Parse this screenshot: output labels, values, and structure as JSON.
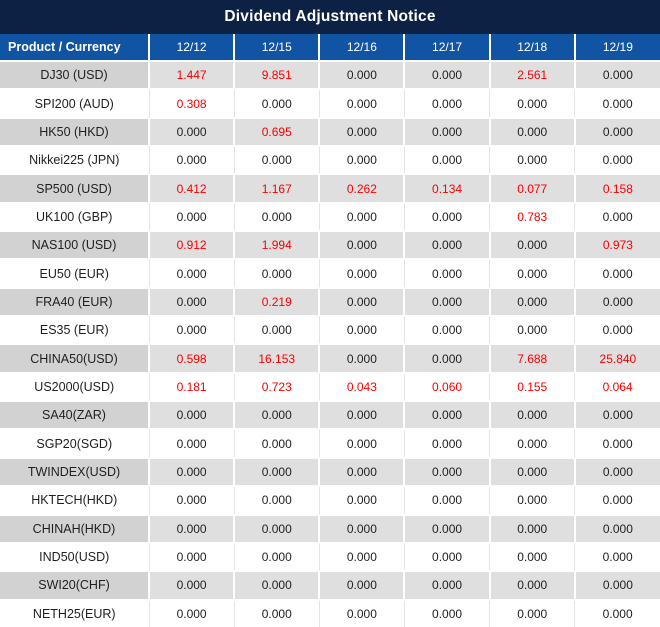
{
  "title": "Dividend Adjustment Notice",
  "table": {
    "first_column_header": "Product / Currency",
    "date_headers": [
      "12/12",
      "12/15",
      "12/16",
      "12/17",
      "12/18",
      "12/19"
    ],
    "rows": [
      {
        "product": "DJ30 (USD)",
        "values": [
          "1.447",
          "9.851",
          "0.000",
          "0.000",
          "2.561",
          "0.000"
        ]
      },
      {
        "product": "SPI200 (AUD)",
        "values": [
          "0.308",
          "0.000",
          "0.000",
          "0.000",
          "0.000",
          "0.000"
        ]
      },
      {
        "product": "HK50 (HKD)",
        "values": [
          "0.000",
          "0.695",
          "0.000",
          "0.000",
          "0.000",
          "0.000"
        ]
      },
      {
        "product": "Nikkei225 (JPN)",
        "values": [
          "0.000",
          "0.000",
          "0.000",
          "0.000",
          "0.000",
          "0.000"
        ]
      },
      {
        "product": "SP500 (USD)",
        "values": [
          "0.412",
          "1.167",
          "0.262",
          "0.134",
          "0.077",
          "0.158"
        ]
      },
      {
        "product": "UK100 (GBP)",
        "values": [
          "0.000",
          "0.000",
          "0.000",
          "0.000",
          "0.783",
          "0.000"
        ]
      },
      {
        "product": "NAS100 (USD)",
        "values": [
          "0.912",
          "1.994",
          "0.000",
          "0.000",
          "0.000",
          "0.973"
        ]
      },
      {
        "product": "EU50 (EUR)",
        "values": [
          "0.000",
          "0.000",
          "0.000",
          "0.000",
          "0.000",
          "0.000"
        ]
      },
      {
        "product": "FRA40 (EUR)",
        "values": [
          "0.000",
          "0.219",
          "0.000",
          "0.000",
          "0.000",
          "0.000"
        ]
      },
      {
        "product": "ES35 (EUR)",
        "values": [
          "0.000",
          "0.000",
          "0.000",
          "0.000",
          "0.000",
          "0.000"
        ]
      },
      {
        "product": "CHINA50(USD)",
        "values": [
          "0.598",
          "16.153",
          "0.000",
          "0.000",
          "7.688",
          "25.840"
        ]
      },
      {
        "product": "US2000(USD)",
        "values": [
          "0.181",
          "0.723",
          "0.043",
          "0.060",
          "0.155",
          "0.064"
        ]
      },
      {
        "product": "SA40(ZAR)",
        "values": [
          "0.000",
          "0.000",
          "0.000",
          "0.000",
          "0.000",
          "0.000"
        ]
      },
      {
        "product": "SGP20(SGD)",
        "values": [
          "0.000",
          "0.000",
          "0.000",
          "0.000",
          "0.000",
          "0.000"
        ]
      },
      {
        "product": "TWINDEX(USD)",
        "values": [
          "0.000",
          "0.000",
          "0.000",
          "0.000",
          "0.000",
          "0.000"
        ]
      },
      {
        "product": "HKTECH(HKD)",
        "values": [
          "0.000",
          "0.000",
          "0.000",
          "0.000",
          "0.000",
          "0.000"
        ]
      },
      {
        "product": "CHINAH(HKD)",
        "values": [
          "0.000",
          "0.000",
          "0.000",
          "0.000",
          "0.000",
          "0.000"
        ]
      },
      {
        "product": "IND50(USD)",
        "values": [
          "0.000",
          "0.000",
          "0.000",
          "0.000",
          "0.000",
          "0.000"
        ]
      },
      {
        "product": "SWI20(CHF)",
        "values": [
          "0.000",
          "0.000",
          "0.000",
          "0.000",
          "0.000",
          "0.000"
        ]
      },
      {
        "product": "NETH25(EUR)",
        "values": [
          "0.000",
          "0.000",
          "0.000",
          "0.000",
          "0.000",
          "0.000"
        ]
      }
    ]
  },
  "colors": {
    "title_bg": "#0d2145",
    "header_bg": "#1254a4",
    "stripe_cell_bg": "#dfdfdf",
    "stripe_product_bg": "#d2d2d2",
    "nonzero_value_color": "#fa0000",
    "text_color": "#1f1f1f"
  }
}
